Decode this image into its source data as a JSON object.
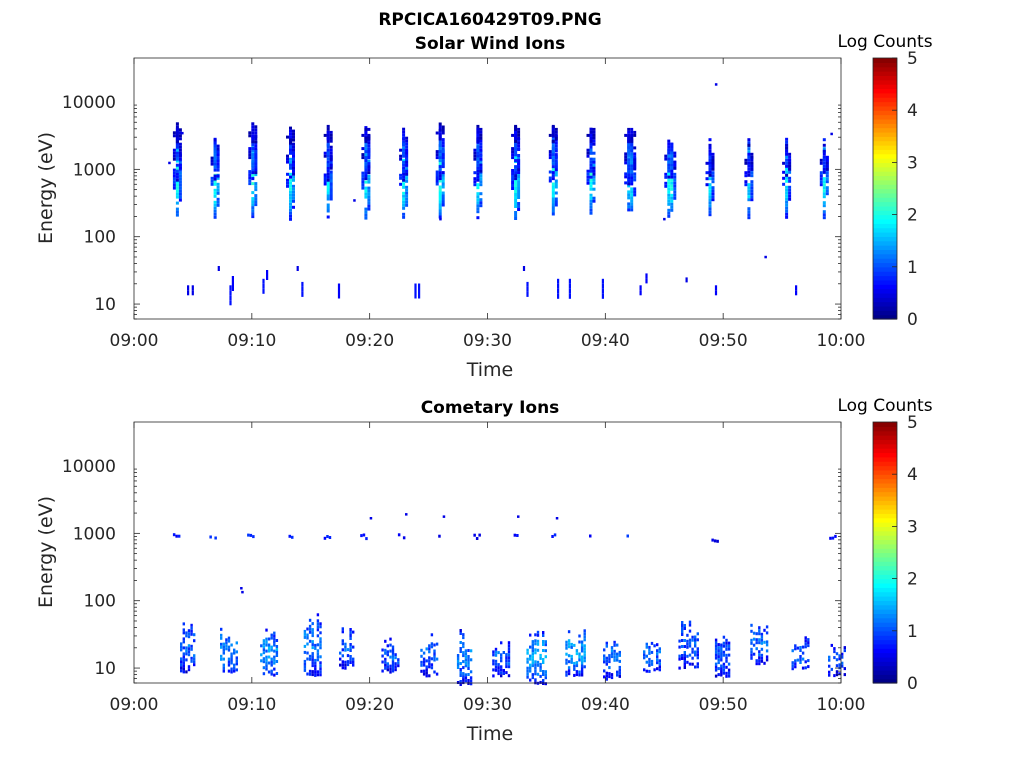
{
  "figure": {
    "title": "RPCICA160429T09.PNG",
    "colors": {
      "axis": "#262626",
      "background": "#ffffff",
      "colormap": "jet"
    }
  },
  "chart_data": [
    {
      "type": "heatmap",
      "title": "Solar Wind Ions",
      "xlabel": "Time",
      "ylabel": "Energy (eV)",
      "x_ticks": [
        "09:00",
        "09:10",
        "09:20",
        "09:30",
        "09:40",
        "09:50",
        "10:00"
      ],
      "y_ticks": [
        "10",
        "100",
        "1000",
        "10000"
      ],
      "x_range_minutes": [
        0,
        60
      ],
      "y_range_eV": [
        6,
        45000
      ],
      "y_scale": "log",
      "colorbar": {
        "label": "Log Counts",
        "ticks": [
          "0",
          "1",
          "2",
          "3",
          "4",
          "5"
        ],
        "range": [
          0,
          5
        ]
      },
      "pulses": [
        {
          "t": 3.3,
          "tw": 0.55,
          "bands": [
            [
              760,
              0.16,
              2.0
            ],
            [
              1700,
              0.1,
              1.0
            ],
            [
              3500,
              0.04,
              0.5
            ]
          ]
        },
        {
          "t": 6.5,
          "tw": 0.6,
          "bands": [
            [
              770,
              0.15,
              2.1
            ],
            [
              1400,
              0.08,
              1.1
            ]
          ]
        },
        {
          "t": 9.7,
          "tw": 0.6,
          "bands": [
            [
              790,
              0.15,
              2.0
            ],
            [
              1800,
              0.1,
              1.1
            ],
            [
              3500,
              0.04,
              0.6
            ]
          ]
        },
        {
          "t": 12.9,
          "tw": 0.6,
          "bands": [
            [
              720,
              0.15,
              1.9
            ],
            [
              1500,
              0.08,
              1.0
            ],
            [
              3300,
              0.03,
              0.5
            ]
          ]
        },
        {
          "t": 16.1,
          "tw": 0.55,
          "bands": [
            [
              780,
              0.15,
              1.8
            ],
            [
              1700,
              0.1,
              1.0
            ],
            [
              3500,
              0.03,
              0.5
            ]
          ]
        },
        {
          "t": 19.3,
          "tw": 0.6,
          "bands": [
            [
              760,
              0.16,
              2.0
            ],
            [
              1800,
              0.1,
              1.0
            ],
            [
              3500,
              0.03,
              0.5
            ]
          ]
        },
        {
          "t": 22.5,
          "tw": 0.6,
          "bands": [
            [
              770,
              0.15,
              2.0
            ],
            [
              1700,
              0.1,
              1.0
            ]
          ]
        },
        {
          "t": 25.6,
          "tw": 0.6,
          "bands": [
            [
              780,
              0.15,
              2.1
            ],
            [
              1800,
              0.1,
              1.2
            ],
            [
              3800,
              0.03,
              0.5
            ]
          ]
        },
        {
          "t": 28.8,
          "tw": 0.6,
          "bands": [
            [
              760,
              0.15,
              1.9
            ],
            [
              1700,
              0.1,
              1.0
            ],
            [
              3500,
              0.03,
              0.5
            ]
          ]
        },
        {
          "t": 32.0,
          "tw": 0.6,
          "bands": [
            [
              750,
              0.16,
              2.0
            ],
            [
              1800,
              0.1,
              1.0
            ],
            [
              3500,
              0.03,
              0.5
            ]
          ]
        },
        {
          "t": 35.2,
          "tw": 0.6,
          "bands": [
            [
              780,
              0.15,
              2.0
            ],
            [
              1800,
              0.1,
              1.1
            ],
            [
              3500,
              0.03,
              0.5
            ]
          ]
        },
        {
          "t": 38.4,
          "tw": 0.6,
          "bands": [
            [
              790,
              0.14,
              2.0
            ],
            [
              1700,
              0.1,
              1.0
            ],
            [
              3500,
              0.03,
              0.5
            ]
          ]
        },
        {
          "t": 41.6,
          "tw": 0.8,
          "bands": [
            [
              810,
              0.15,
              1.9
            ],
            [
              1500,
              0.1,
              1.2
            ],
            [
              3500,
              0.03,
              0.5
            ]
          ]
        },
        {
          "t": 45.0,
          "tw": 0.8,
          "bands": [
            [
              720,
              0.15,
              2.0
            ],
            [
              1500,
              0.08,
              1.1
            ]
          ]
        },
        {
          "t": 48.5,
          "tw": 0.55,
          "bands": [
            [
              760,
              0.15,
              1.8
            ],
            [
              1400,
              0.06,
              0.8
            ]
          ]
        },
        {
          "t": 51.8,
          "tw": 0.55,
          "bands": [
            [
              760,
              0.15,
              1.8
            ],
            [
              1400,
              0.06,
              0.8
            ]
          ]
        },
        {
          "t": 55.0,
          "tw": 0.55,
          "bands": [
            [
              770,
              0.15,
              1.8
            ],
            [
              1400,
              0.06,
              0.8
            ]
          ]
        },
        {
          "t": 58.2,
          "tw": 0.55,
          "bands": [
            [
              760,
              0.15,
              2.0
            ],
            [
              1400,
              0.06,
              0.8
            ]
          ]
        }
      ],
      "sticks": [
        {
          "t": 4.5,
          "e": 16,
          "len": 2,
          "v": 0.5
        },
        {
          "t": 4.9,
          "e": 16,
          "len": 2,
          "v": 0.5
        },
        {
          "t": 7.1,
          "e": 31,
          "len": 1,
          "v": 0.5
        },
        {
          "t": 8.1,
          "e": 16,
          "len": 4,
          "v": 0.7
        },
        {
          "t": 8.3,
          "e": 22,
          "len": 3,
          "v": 0.6
        },
        {
          "t": 10.9,
          "e": 20,
          "len": 3,
          "v": 0.7
        },
        {
          "t": 11.2,
          "e": 27,
          "len": 2,
          "v": 0.6
        },
        {
          "t": 13.8,
          "e": 31,
          "len": 1,
          "v": 0.5
        },
        {
          "t": 14.2,
          "e": 18,
          "len": 3,
          "v": 0.7
        },
        {
          "t": 17.3,
          "e": 17,
          "len": 3,
          "v": 0.6
        },
        {
          "t": 23.8,
          "e": 17,
          "len": 3,
          "v": 0.7
        },
        {
          "t": 24.1,
          "e": 17,
          "len": 3,
          "v": 0.7
        },
        {
          "t": 33.0,
          "e": 31,
          "len": 1,
          "v": 0.5
        },
        {
          "t": 33.3,
          "e": 18,
          "len": 3,
          "v": 0.7
        },
        {
          "t": 35.9,
          "e": 20,
          "len": 4,
          "v": 0.7
        },
        {
          "t": 36.9,
          "e": 20,
          "len": 4,
          "v": 0.7
        },
        {
          "t": 39.7,
          "e": 20,
          "len": 4,
          "v": 0.7
        },
        {
          "t": 42.9,
          "e": 16,
          "len": 2,
          "v": 0.6
        },
        {
          "t": 43.4,
          "e": 24,
          "len": 2,
          "v": 0.6
        },
        {
          "t": 46.8,
          "e": 21,
          "len": 1,
          "v": 0.5
        },
        {
          "t": 49.3,
          "e": 16,
          "len": 2,
          "v": 0.6
        },
        {
          "t": 56.1,
          "e": 16,
          "len": 2,
          "v": 0.6
        }
      ],
      "specks": [
        {
          "t": 2.9,
          "e": 1300,
          "v": 0.5
        },
        {
          "t": 4.0,
          "e": 3600,
          "v": 0.5
        },
        {
          "t": 18.6,
          "e": 360,
          "v": 0.5
        },
        {
          "t": 25.9,
          "e": 190,
          "v": 0.5
        },
        {
          "t": 44.9,
          "e": 190,
          "v": 0.5
        },
        {
          "t": 49.3,
          "e": 19000,
          "v": 0.5
        },
        {
          "t": 53.5,
          "e": 52,
          "v": 0.5
        },
        {
          "t": 59.1,
          "e": 3500,
          "v": 0.5
        }
      ]
    },
    {
      "type": "heatmap",
      "title": "Cometary Ions",
      "xlabel": "Time",
      "ylabel": "Energy (eV)",
      "x_ticks": [
        "09:00",
        "09:10",
        "09:20",
        "09:30",
        "09:40",
        "09:50",
        "10:00"
      ],
      "y_ticks": [
        "10",
        "100",
        "1000",
        "10000"
      ],
      "x_range_minutes": [
        0,
        60
      ],
      "y_range_eV": [
        6,
        45000
      ],
      "y_scale": "log",
      "colorbar": {
        "label": "Log Counts",
        "ticks": [
          "0",
          "1",
          "2",
          "3",
          "4",
          "5"
        ],
        "range": [
          0,
          5
        ]
      },
      "line_bands": [
        {
          "t": 3.3,
          "e": 850,
          "w": 0.6,
          "v": 0.7
        },
        {
          "t": 6.4,
          "e": 860,
          "w": 0.6,
          "v": 0.8
        },
        {
          "t": 9.6,
          "e": 860,
          "w": 0.6,
          "v": 0.8
        },
        {
          "t": 12.9,
          "e": 840,
          "w": 0.6,
          "v": 0.7
        },
        {
          "t": 16.1,
          "e": 850,
          "w": 0.5,
          "v": 0.7
        },
        {
          "t": 19.2,
          "e": 850,
          "w": 0.5,
          "v": 0.7
        },
        {
          "t": 22.4,
          "e": 860,
          "w": 0.5,
          "v": 0.6
        },
        {
          "t": 25.6,
          "e": 860,
          "w": 0.5,
          "v": 0.6
        },
        {
          "t": 28.8,
          "e": 840,
          "w": 0.5,
          "v": 0.6
        },
        {
          "t": 32.0,
          "e": 840,
          "w": 0.5,
          "v": 0.6
        },
        {
          "t": 35.2,
          "e": 850,
          "w": 0.5,
          "v": 0.7
        },
        {
          "t": 38.4,
          "e": 850,
          "w": 0.5,
          "v": 0.7
        },
        {
          "t": 41.8,
          "e": 900,
          "w": 0.7,
          "v": 0.8
        },
        {
          "t": 49.0,
          "e": 770,
          "w": 0.6,
          "v": 0.5
        },
        {
          "t": 59.0,
          "e": 820,
          "w": 0.5,
          "v": 0.6
        }
      ],
      "specks": [
        {
          "t": 20.0,
          "e": 1750,
          "v": 0.5
        },
        {
          "t": 23.0,
          "e": 2000,
          "v": 0.5
        },
        {
          "t": 26.2,
          "e": 1850,
          "v": 0.5
        },
        {
          "t": 32.5,
          "e": 1850,
          "v": 0.5
        },
        {
          "t": 35.8,
          "e": 1750,
          "v": 0.5
        },
        {
          "t": 9.0,
          "e": 160,
          "v": 0.5
        },
        {
          "t": 9.1,
          "e": 140,
          "v": 0.5
        }
      ],
      "clusters": [
        {
          "t": 3.9,
          "w": 1.2,
          "lo": 9,
          "hi": 55,
          "v": 1.3
        },
        {
          "t": 7.3,
          "w": 1.5,
          "lo": 9,
          "hi": 45,
          "v": 1.4
        },
        {
          "t": 10.7,
          "w": 1.4,
          "lo": 8,
          "hi": 40,
          "v": 1.5
        },
        {
          "t": 14.4,
          "w": 1.4,
          "lo": 8,
          "hi": 70,
          "v": 1.4
        },
        {
          "t": 17.4,
          "w": 1.2,
          "lo": 10,
          "hi": 45,
          "v": 1.2
        },
        {
          "t": 21.0,
          "w": 1.4,
          "lo": 9,
          "hi": 30,
          "v": 1.2
        },
        {
          "t": 24.3,
          "w": 1.4,
          "lo": 8,
          "hi": 35,
          "v": 1.3
        },
        {
          "t": 27.4,
          "w": 1.2,
          "lo": 6,
          "hi": 40,
          "v": 1.4
        },
        {
          "t": 30.4,
          "w": 1.4,
          "lo": 8,
          "hi": 30,
          "v": 1.2
        },
        {
          "t": 33.3,
          "w": 1.6,
          "lo": 6,
          "hi": 40,
          "v": 1.6
        },
        {
          "t": 36.6,
          "w": 1.6,
          "lo": 8,
          "hi": 45,
          "v": 1.6
        },
        {
          "t": 39.8,
          "w": 1.4,
          "lo": 7,
          "hi": 35,
          "v": 1.3
        },
        {
          "t": 43.2,
          "w": 1.5,
          "lo": 9,
          "hi": 30,
          "v": 1.3
        },
        {
          "t": 46.2,
          "w": 1.6,
          "lo": 10,
          "hi": 65,
          "v": 1.2
        },
        {
          "t": 49.3,
          "w": 1.2,
          "lo": 7,
          "hi": 35,
          "v": 1.1
        },
        {
          "t": 52.3,
          "w": 1.4,
          "lo": 12,
          "hi": 55,
          "v": 1.3
        },
        {
          "t": 55.8,
          "w": 1.4,
          "lo": 10,
          "hi": 30,
          "v": 1.3
        },
        {
          "t": 58.9,
          "w": 1.4,
          "lo": 8,
          "hi": 25,
          "v": 1.1
        }
      ]
    }
  ]
}
